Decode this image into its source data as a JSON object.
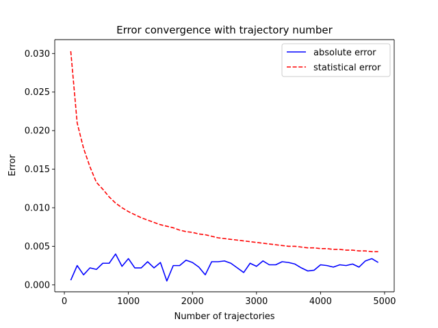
{
  "chart_data": {
    "type": "line",
    "title": "Error convergence with trajectory number",
    "xlabel": "Number of trajectories",
    "ylabel": "Error",
    "xlim": [
      -150,
      5150
    ],
    "ylim": [
      -0.0009,
      0.0318
    ],
    "xticks": [
      0,
      1000,
      2000,
      3000,
      4000,
      5000
    ],
    "xtick_labels": [
      "0",
      "1000",
      "2000",
      "3000",
      "4000",
      "5000"
    ],
    "yticks": [
      0.0,
      0.005,
      0.01,
      0.015,
      0.02,
      0.025,
      0.03
    ],
    "ytick_labels": [
      "0.000",
      "0.005",
      "0.010",
      "0.015",
      "0.020",
      "0.025",
      "0.030"
    ],
    "grid": false,
    "legend_position": "top-right",
    "x": [
      100,
      200,
      300,
      400,
      500,
      600,
      700,
      800,
      900,
      1000,
      1100,
      1200,
      1300,
      1400,
      1500,
      1600,
      1700,
      1800,
      1900,
      2000,
      2100,
      2200,
      2300,
      2400,
      2500,
      2600,
      2700,
      2800,
      2900,
      3000,
      3100,
      3200,
      3300,
      3400,
      3500,
      3600,
      3700,
      3800,
      3900,
      4000,
      4100,
      4200,
      4300,
      4400,
      4500,
      4600,
      4700,
      4800,
      4900
    ],
    "series": [
      {
        "name": "absolute error",
        "color": "#0000ff",
        "style": "solid",
        "values": [
          0.0006,
          0.0025,
          0.0013,
          0.0022,
          0.002,
          0.0028,
          0.0028,
          0.004,
          0.0024,
          0.0034,
          0.0022,
          0.0022,
          0.003,
          0.0022,
          0.0029,
          0.0005,
          0.0025,
          0.0025,
          0.0032,
          0.0029,
          0.0023,
          0.0013,
          0.003,
          0.003,
          0.0031,
          0.0028,
          0.0022,
          0.0016,
          0.0028,
          0.0024,
          0.0031,
          0.0026,
          0.0026,
          0.003,
          0.0029,
          0.0027,
          0.0022,
          0.0018,
          0.0019,
          0.0026,
          0.0025,
          0.0023,
          0.0026,
          0.0025,
          0.0027,
          0.0023,
          0.0031,
          0.0034,
          0.0029
        ]
      },
      {
        "name": "statistical error",
        "color": "#ff0000",
        "style": "dashed",
        "values": [
          0.0303,
          0.021,
          0.0177,
          0.0153,
          0.0133,
          0.0124,
          0.0114,
          0.0106,
          0.01,
          0.0095,
          0.0091,
          0.0087,
          0.0084,
          0.0081,
          0.0078,
          0.0076,
          0.0074,
          0.0071,
          0.0069,
          0.0068,
          0.0066,
          0.0065,
          0.0063,
          0.0061,
          0.006,
          0.0059,
          0.0058,
          0.0057,
          0.0056,
          0.0055,
          0.0054,
          0.0053,
          0.0052,
          0.0051,
          0.005,
          0.005,
          0.0049,
          0.0048,
          0.0048,
          0.0047,
          0.0047,
          0.0046,
          0.0046,
          0.0045,
          0.0045,
          0.0044,
          0.0044,
          0.0043,
          0.0043
        ]
      }
    ]
  }
}
